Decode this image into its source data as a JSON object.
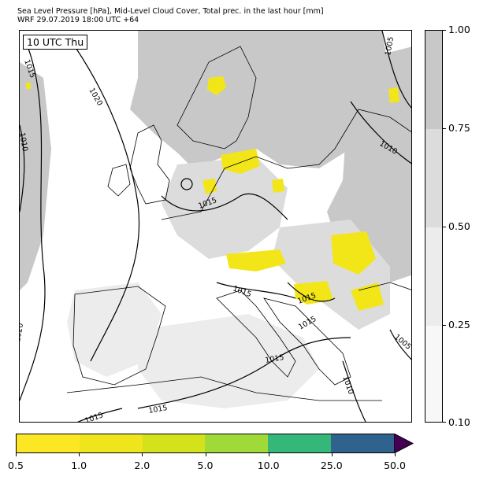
{
  "title_line1": "Sea Level Pressure [hPa], Mid-Level Cloud Cover, Total prec. in the last hour [mm]",
  "title_line2": "WRF 29.07.2019 18:00 UTC +64",
  "time_label": "10 UTC Thu",
  "isobar_labels": [
    "1015",
    "1020",
    "1010",
    "1015",
    "1005",
    "1010",
    "1015",
    "1015",
    "1015",
    "1020",
    "1015",
    "1015",
    "1010",
    "1005",
    "1015"
  ],
  "cloud_cover_scale": {
    "labels": [
      "1.00",
      "0.75",
      "0.50",
      "0.25",
      "0.10"
    ],
    "colors": [
      "#c8c8c8",
      "#dcdcdc",
      "#ececec",
      "#f7f7f7"
    ]
  },
  "precip_scale": {
    "labels": [
      "0.5",
      "1.0",
      "2.0",
      "5.0",
      "10.0",
      "25.0",
      "50.0"
    ],
    "colors": [
      "#fde725",
      "#eee51c",
      "#d3e21b",
      "#a0da39",
      "#35b779",
      "#30628e",
      "#440154"
    ]
  },
  "colors": {
    "cloud_dense": "#c8c8c8",
    "cloud_medium": "#dcdcdc",
    "cloud_light": "#ececec",
    "precip": "#f2e619",
    "isobar": "#000000"
  }
}
